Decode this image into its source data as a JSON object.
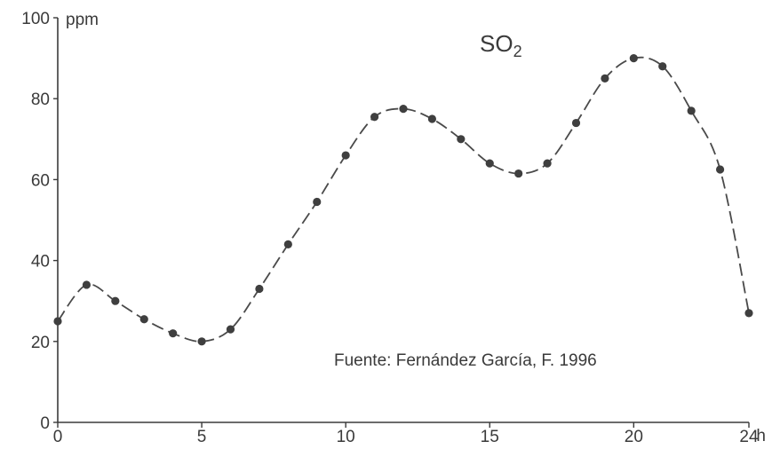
{
  "chart_data": {
    "type": "line",
    "title_main": "SO",
    "title_sub": "2",
    "y_unit": "ppm",
    "x_unit": "h",
    "source": "Fuente: Fernández García, F. 1996",
    "xlim": [
      0,
      24
    ],
    "ylim": [
      0,
      100
    ],
    "x_ticks": [
      0,
      5,
      10,
      15,
      20,
      24
    ],
    "y_ticks": [
      0,
      20,
      40,
      60,
      80,
      100
    ],
    "grid": false,
    "series": [
      {
        "x": [
          0,
          1,
          2,
          3,
          4,
          5,
          6,
          7,
          8,
          9,
          10,
          11,
          12,
          13,
          14,
          15,
          16,
          17,
          18,
          19,
          20,
          21,
          22,
          23,
          24
        ],
        "values": [
          25,
          34,
          30,
          25.5,
          22,
          20,
          23,
          33,
          44,
          54.5,
          66,
          75.5,
          77.5,
          75,
          70,
          64,
          61.5,
          64,
          74,
          85,
          90,
          88,
          77,
          62.5,
          27
        ]
      }
    ],
    "colors": {
      "axis": "#3a3a3a",
      "line": "#4a4a4a",
      "point": "#3f3f3f"
    }
  }
}
